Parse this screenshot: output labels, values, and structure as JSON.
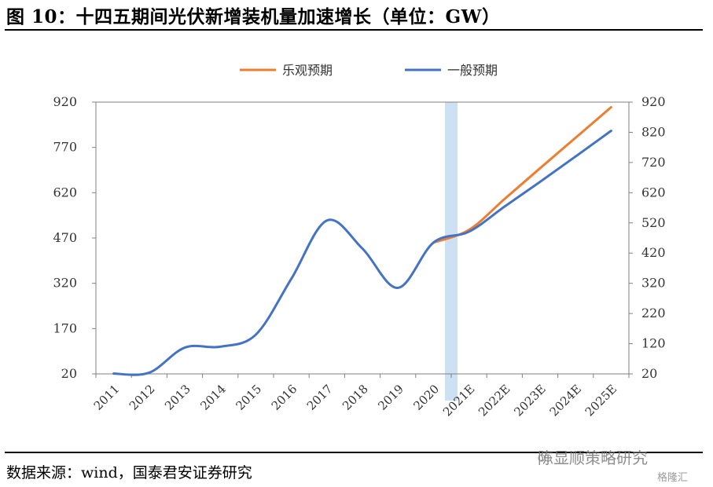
{
  "header": {
    "title": "图 10：十四五期间光伏新增装机量加速增长（单位：GW）"
  },
  "footer": {
    "source": "数据来源：wind，国泰君安证券研究",
    "watermark": "陈显顺策略研究",
    "watermark2": "格隆汇"
  },
  "chart_data": {
    "type": "line",
    "title": "",
    "categories": [
      "2011",
      "2012",
      "2013",
      "2014",
      "2015",
      "2016",
      "2017",
      "2018",
      "2019",
      "2020",
      "2021E",
      "2022E",
      "2023E",
      "2024E",
      "2025E"
    ],
    "y_left": {
      "ticks": [
        20,
        170,
        320,
        470,
        620,
        770,
        920
      ],
      "range": [
        20,
        920
      ]
    },
    "y_right": {
      "ticks": [
        20,
        120,
        220,
        320,
        420,
        520,
        620,
        720,
        820,
        920
      ],
      "range": [
        20,
        920
      ]
    },
    "highlight_category": "2021E",
    "legend_position": "top-center",
    "grid": false,
    "series": [
      {
        "name": "乐观预期",
        "color": "#ED7D31",
        "values": [
          null,
          null,
          null,
          null,
          null,
          null,
          null,
          null,
          null,
          455,
          497,
          599,
          701,
          802,
          903
        ]
      },
      {
        "name": "一般预期",
        "color": "#4472C4",
        "values": [
          21,
          24,
          107,
          110,
          150,
          335,
          528,
          435,
          305,
          455,
          491,
          574,
          656,
          740,
          825
        ]
      }
    ]
  }
}
